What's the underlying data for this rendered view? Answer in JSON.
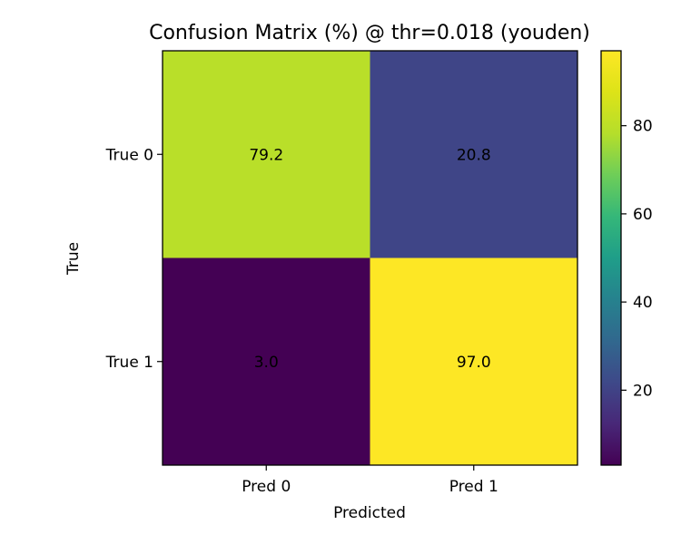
{
  "chart_data": {
    "type": "heatmap",
    "title": "Confusion Matrix (%) @ thr=0.018 (youden)",
    "xlabel": "Predicted",
    "ylabel": "True",
    "x_categories": [
      "Pred 0",
      "Pred 1"
    ],
    "y_categories": [
      "True 0",
      "True 1"
    ],
    "values": [
      [
        79.2,
        20.8
      ],
      [
        3.0,
        97.0
      ]
    ],
    "value_labels": [
      [
        "79.2",
        "20.8"
      ],
      [
        "3.0",
        "97.0"
      ]
    ],
    "colormap": "viridis",
    "colorbar": {
      "range": [
        3.0,
        97.0
      ],
      "ticks": [
        20,
        40,
        60,
        80
      ],
      "tick_labels": [
        "20",
        "40",
        "60",
        "80"
      ]
    },
    "grid": false
  }
}
